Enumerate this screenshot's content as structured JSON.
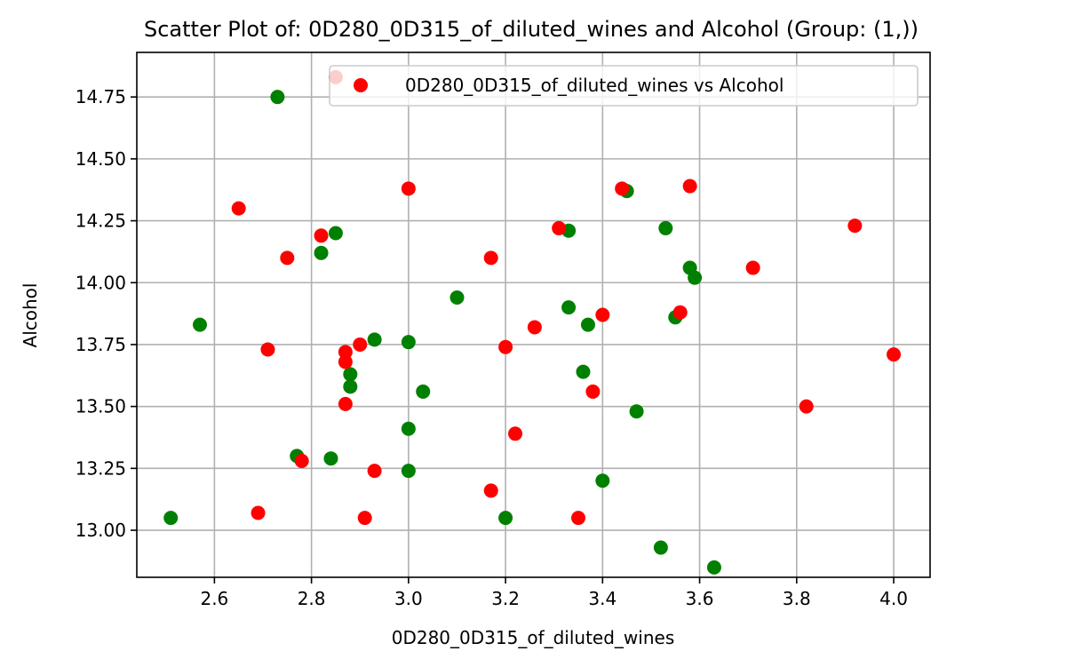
{
  "chart_data": {
    "type": "scatter",
    "title": "Scatter Plot of: 0D280_0D315_of_diluted_wines and Alcohol (Group: (1,))",
    "xlabel": "0D280_0D315_of_diluted_wines",
    "ylabel": "Alcohol",
    "xlim": [
      2.44,
      4.075
    ],
    "ylim": [
      12.81,
      14.93
    ],
    "xticks": [
      2.6,
      2.8,
      3.0,
      3.2,
      3.4,
      3.6,
      3.8,
      4.0
    ],
    "xtick_labels": [
      "2.6",
      "2.8",
      "3.0",
      "3.2",
      "3.4",
      "3.6",
      "3.8",
      "4.0"
    ],
    "yticks": [
      13.0,
      13.25,
      13.5,
      13.75,
      14.0,
      14.25,
      14.5,
      14.75
    ],
    "ytick_labels": [
      "13.00",
      "13.25",
      "13.50",
      "13.75",
      "14.00",
      "14.25",
      "14.50",
      "14.75"
    ],
    "grid": true,
    "legend": {
      "placement": "top-right",
      "entries": [
        "0D280_0D315_of_diluted_wines vs Alcohol"
      ]
    },
    "colors": {
      "red": "#ff0000",
      "green": "#008000"
    },
    "series": [
      {
        "color": "#008000",
        "points": [
          [
            2.73,
            14.75
          ],
          [
            2.85,
            14.2
          ],
          [
            2.82,
            14.12
          ],
          [
            2.57,
            13.83
          ],
          [
            2.93,
            13.77
          ],
          [
            3.0,
            13.76
          ],
          [
            2.88,
            13.63
          ],
          [
            2.88,
            13.58
          ],
          [
            3.03,
            13.56
          ],
          [
            3.0,
            13.41
          ],
          [
            2.77,
            13.3
          ],
          [
            2.84,
            13.29
          ],
          [
            3.0,
            13.24
          ],
          [
            2.51,
            13.05
          ],
          [
            3.1,
            13.94
          ],
          [
            3.2,
            13.05
          ],
          [
            3.33,
            14.21
          ],
          [
            3.33,
            13.9
          ],
          [
            3.37,
            13.83
          ],
          [
            3.36,
            13.64
          ],
          [
            3.47,
            13.48
          ],
          [
            3.4,
            13.2
          ],
          [
            3.45,
            14.37
          ],
          [
            3.53,
            14.22
          ],
          [
            3.58,
            14.06
          ],
          [
            3.59,
            14.02
          ],
          [
            3.55,
            13.86
          ],
          [
            3.52,
            12.93
          ],
          [
            3.63,
            12.85
          ]
        ]
      },
      {
        "color": "#ff0000",
        "points": [
          [
            2.85,
            14.83
          ],
          [
            2.65,
            14.3
          ],
          [
            2.82,
            14.19
          ],
          [
            2.75,
            14.1
          ],
          [
            2.71,
            13.73
          ],
          [
            2.9,
            13.75
          ],
          [
            2.87,
            13.72
          ],
          [
            2.87,
            13.68
          ],
          [
            2.87,
            13.51
          ],
          [
            2.78,
            13.28
          ],
          [
            2.93,
            13.24
          ],
          [
            2.69,
            13.07
          ],
          [
            2.91,
            13.05
          ],
          [
            3.0,
            14.38
          ],
          [
            3.17,
            14.1
          ],
          [
            3.2,
            13.74
          ],
          [
            3.26,
            13.82
          ],
          [
            3.22,
            13.39
          ],
          [
            3.17,
            13.16
          ],
          [
            3.31,
            14.22
          ],
          [
            3.44,
            14.38
          ],
          [
            3.4,
            13.87
          ],
          [
            3.38,
            13.56
          ],
          [
            3.35,
            13.05
          ],
          [
            3.58,
            14.39
          ],
          [
            3.56,
            13.88
          ],
          [
            3.71,
            14.06
          ],
          [
            3.82,
            13.5
          ],
          [
            3.92,
            14.23
          ],
          [
            4.0,
            13.71
          ]
        ]
      }
    ]
  }
}
